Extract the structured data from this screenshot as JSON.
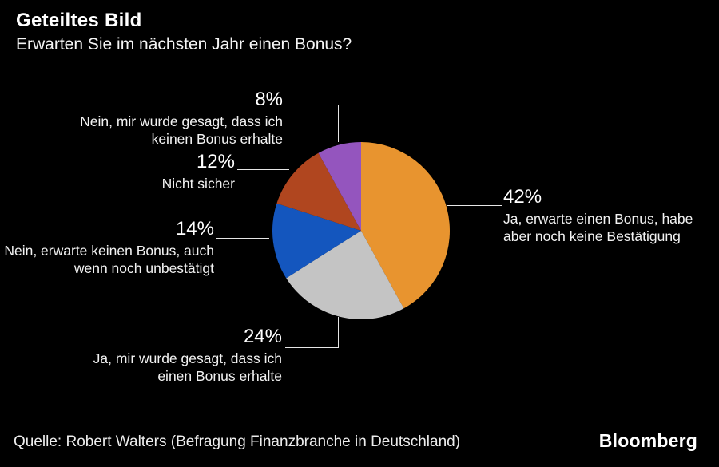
{
  "header": {
    "title": "Geteiltes Bild",
    "subtitle": "Erwarten Sie im nächsten Jahr einen Bonus?"
  },
  "footer": {
    "source": "Quelle: Robert Walters (Befragung Finanzbranche in Deutschland)",
    "brand": "Bloomberg"
  },
  "colors": {
    "background": "#000000",
    "text": "#ffffff",
    "leader_line": "#e6e6e6"
  },
  "chart_data": {
    "type": "pie",
    "title": "Geteiltes Bild",
    "subtitle": "Erwarten Sie im nächsten Jahr einen Bonus?",
    "unit": "%",
    "start_angle_deg": 0,
    "direction": "clockwise",
    "legend_position": "callouts",
    "slices": [
      {
        "value": 42,
        "pct_label": "42%",
        "label": "Ja, erwarte einen Bonus, habe\naber noch keine Bestätigung",
        "color": "#E8942F"
      },
      {
        "value": 24,
        "pct_label": "24%",
        "label": "Ja, mir wurde gesagt, dass ich\neinen Bonus erhalte",
        "color": "#C4C4C4"
      },
      {
        "value": 14,
        "pct_label": "14%",
        "label": "Nein, erwarte keinen Bonus, auch\nwenn noch unbestätigt",
        "color": "#1456BE"
      },
      {
        "value": 12,
        "pct_label": "12%",
        "label": "Nicht sicher",
        "color": "#B0461F"
      },
      {
        "value": 8,
        "pct_label": "8%",
        "label": "Nein, mir wurde gesagt, dass ich\nkeinen Bonus erhalte",
        "color": "#9455BE"
      }
    ]
  }
}
